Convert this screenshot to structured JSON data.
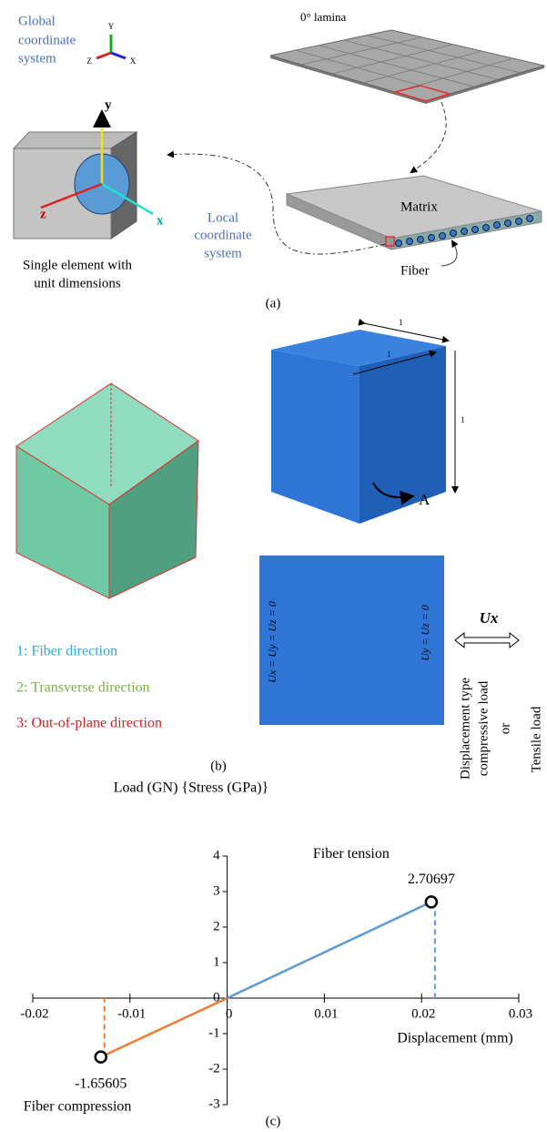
{
  "panel_a": {
    "caption": "(a)",
    "global_label": [
      "Global",
      "coordinate",
      "system"
    ],
    "global_axes": [
      "Y",
      "Z",
      "X"
    ],
    "lamina_label": "0° lamina",
    "matrix_label": "Matrix",
    "fiber_label": "Fiber",
    "local_axes": [
      "y",
      "z",
      "x"
    ],
    "local_label": [
      "Local",
      "coordinate",
      "system"
    ],
    "element_label": [
      "Single element with",
      "unit dimensions"
    ]
  },
  "panel_b": {
    "caption": "(b)",
    "dimensions": [
      "1",
      "1",
      "1"
    ],
    "face_label": "A",
    "directions": [
      "1: Fiber direction",
      "2: Transverse direction",
      "3: Out-of-plane direction"
    ],
    "fixed_bc": "Ux = Uy = Uz = 0",
    "roller_bc": "Uy = Uz = 0",
    "load_symbol": "Ux",
    "load_type": [
      "Displacement type",
      "compressive load",
      "or",
      "Tensile load"
    ]
  },
  "chart_data": {
    "type": "line",
    "caption": "(c)",
    "title": "Load (GN) {Stress (GPa)}",
    "xlabel": "Displacement (mm)",
    "xlim": [
      -0.02,
      0.03
    ],
    "xticks": [
      -0.02,
      -0.01,
      0,
      0.01,
      0.02,
      0.03
    ],
    "ylim": [
      -3,
      4
    ],
    "yticks": [
      -3,
      -2,
      -1,
      0,
      1,
      2,
      3,
      4
    ],
    "series": [
      {
        "name": "Fiber compression",
        "color": "#ed7d31",
        "x": [
          0,
          -0.013
        ],
        "values": [
          0,
          -1.65605
        ]
      },
      {
        "name": "Fiber tension",
        "color": "#5b9bd5",
        "x": [
          0,
          0.021
        ],
        "values": [
          0,
          2.70697
        ]
      }
    ]
  }
}
